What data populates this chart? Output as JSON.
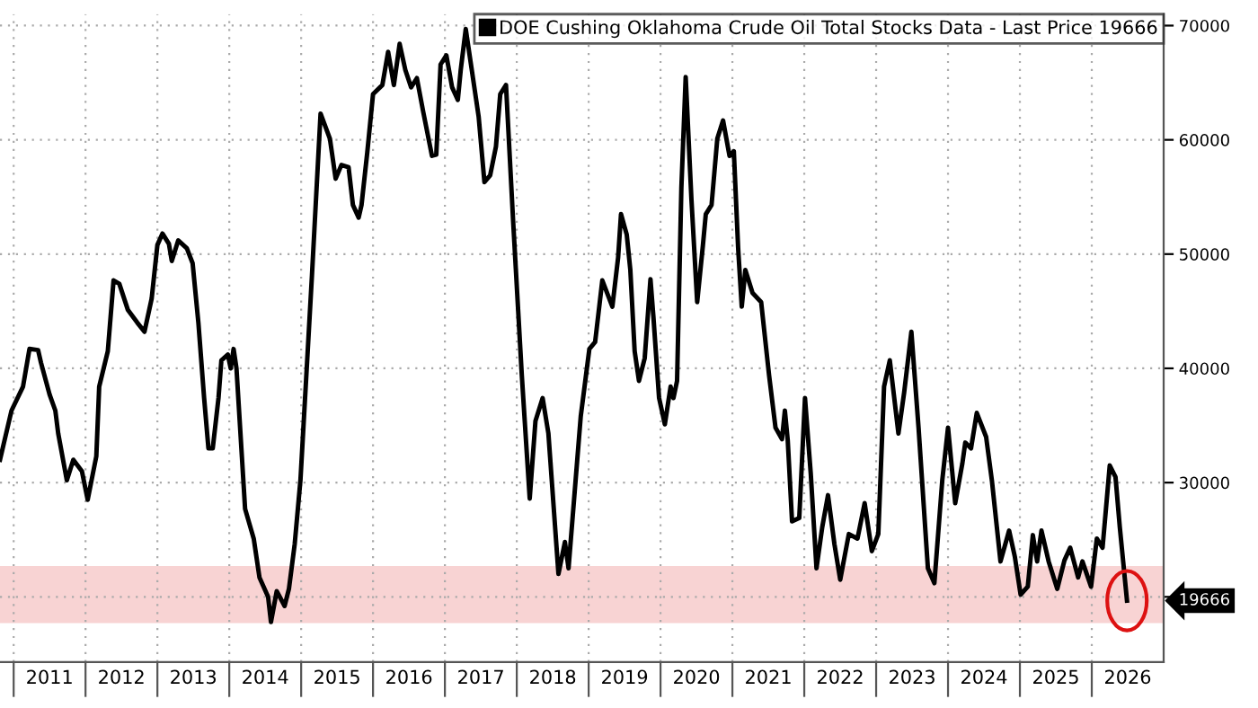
{
  "chart_data": {
    "type": "line",
    "legend": "top right",
    "grid": true,
    "marker": "none",
    "line_style": "solid",
    "xlim": [
      2010.81,
      2027.0
    ],
    "ylim": [
      14300,
      71000
    ],
    "xticks": [
      {
        "value": 2011,
        "label": null
      },
      {
        "value": 2011.5,
        "label": "2011"
      },
      {
        "value": 2012,
        "label": null
      },
      {
        "value": 2012.5,
        "label": "2012"
      },
      {
        "value": 2013,
        "label": null
      },
      {
        "value": 2013.5,
        "label": "2013"
      },
      {
        "value": 2014,
        "label": null
      },
      {
        "value": 2014.5,
        "label": "2014"
      },
      {
        "value": 2015,
        "label": null
      },
      {
        "value": 2015.5,
        "label": "2015"
      },
      {
        "value": 2016,
        "label": null
      },
      {
        "value": 2016.5,
        "label": "2016"
      },
      {
        "value": 2017,
        "label": null
      },
      {
        "value": 2017.5,
        "label": "2017"
      },
      {
        "value": 2018,
        "label": null
      },
      {
        "value": 2018.5,
        "label": "2018"
      },
      {
        "value": 2019,
        "label": null
      },
      {
        "value": 2019.5,
        "label": "2019"
      },
      {
        "value": 2020,
        "label": null
      },
      {
        "value": 2020.5,
        "label": "2020"
      },
      {
        "value": 2021,
        "label": null
      },
      {
        "value": 2021.5,
        "label": "2021"
      },
      {
        "value": 2022,
        "label": null
      },
      {
        "value": 2022.5,
        "label": "2022"
      },
      {
        "value": 2023,
        "label": null
      },
      {
        "value": 2023.5,
        "label": "2023"
      },
      {
        "value": 2024,
        "label": null
      },
      {
        "value": 2024.5,
        "label": "2024"
      },
      {
        "value": 2025,
        "label": null
      },
      {
        "value": 2025.5,
        "label": "2025"
      },
      {
        "value": 2026,
        "label": null
      },
      {
        "value": 2026.5,
        "label": "2026"
      }
    ],
    "yticks": [
      {
        "value": 20000,
        "label": null
      },
      30000,
      40000,
      50000,
      60000,
      70000
    ],
    "bands": [
      {
        "axis": "y",
        "from": 17700,
        "to": 22700,
        "color": "#f8d3d3"
      }
    ],
    "annotations": [
      {
        "text": "19666",
        "x": 2027.0,
        "y": 19666
      }
    ],
    "series": [
      {
        "name": "DOE Cushing Oklahoma Crude Oil Total Stocks Data - Last Price 19666",
        "color": "#000000",
        "x": [
          2010.81,
          2010.97,
          2011.13,
          2011.22,
          2011.34,
          2011.38,
          2011.5,
          2011.58,
          2011.62,
          2011.74,
          2011.83,
          2011.95,
          2012.03,
          2012.15,
          2012.19,
          2012.31,
          2012.39,
          2012.47,
          2012.59,
          2012.72,
          2012.82,
          2012.92,
          2013.0,
          2013.07,
          2013.16,
          2013.2,
          2013.29,
          2013.41,
          2013.49,
          2013.57,
          2013.65,
          2013.71,
          2013.77,
          2013.85,
          2013.89,
          2013.98,
          2014.02,
          2014.06,
          2014.1,
          2014.22,
          2014.34,
          2014.42,
          2014.54,
          2014.58,
          2014.66,
          2014.77,
          2014.83,
          2014.91,
          2014.99,
          2015.15,
          2015.27,
          2015.4,
          2015.48,
          2015.56,
          2015.66,
          2015.72,
          2015.8,
          2015.84,
          2015.92,
          2016.0,
          2016.13,
          2016.21,
          2016.29,
          2016.37,
          2016.45,
          2016.53,
          2016.61,
          2016.7,
          2016.82,
          2016.88,
          2016.94,
          2017.02,
          2017.1,
          2017.18,
          2017.22,
          2017.29,
          2017.37,
          2017.47,
          2017.55,
          2017.63,
          2017.71,
          2017.77,
          2017.85,
          2017.95,
          2018.07,
          2018.18,
          2018.26,
          2018.36,
          2018.44,
          2018.58,
          2018.67,
          2018.72,
          2018.89,
          2019.01,
          2019.09,
          2019.19,
          2019.33,
          2019.41,
          2019.45,
          2019.53,
          2019.58,
          2019.64,
          2019.7,
          2019.78,
          2019.86,
          2019.9,
          2019.98,
          2020.06,
          2020.14,
          2020.18,
          2020.23,
          2020.29,
          2020.35,
          2020.43,
          2020.51,
          2020.59,
          2020.63,
          2020.71,
          2020.79,
          2020.87,
          2020.96,
          2021.02,
          2021.08,
          2021.13,
          2021.18,
          2021.28,
          2021.4,
          2021.51,
          2021.6,
          2021.69,
          2021.73,
          2021.77,
          2021.83,
          2021.93,
          2022.01,
          2022.09,
          2022.17,
          2022.25,
          2022.33,
          2022.42,
          2022.5,
          2022.62,
          2022.74,
          2022.84,
          2022.94,
          2023.03,
          2023.11,
          2023.19,
          2023.31,
          2023.39,
          2023.49,
          2023.59,
          2023.72,
          2023.81,
          2023.92,
          2024.0,
          2024.1,
          2024.2,
          2024.24,
          2024.32,
          2024.4,
          2024.53,
          2024.61,
          2024.73,
          2024.85,
          2024.93,
          2025.01,
          2025.11,
          2025.18,
          2025.24,
          2025.3,
          2025.4,
          2025.52,
          2025.62,
          2025.7,
          2025.81,
          2025.87,
          2025.99,
          2026.07,
          2026.15,
          2026.25,
          2026.33,
          2026.39,
          2026.49
        ],
        "values": [
          32000,
          36300,
          38400,
          41700,
          41600,
          40500,
          37700,
          36300,
          34300,
          30200,
          32000,
          31000,
          28500,
          32300,
          38400,
          41500,
          47700,
          47400,
          45100,
          44000,
          43200,
          46100,
          50800,
          51800,
          50900,
          49400,
          51200,
          50500,
          49200,
          44000,
          37400,
          33000,
          33000,
          37400,
          40700,
          41200,
          40000,
          41700,
          40000,
          27700,
          25100,
          21700,
          20000,
          17800,
          20500,
          19200,
          20700,
          24600,
          30200,
          48100,
          62300,
          60100,
          56600,
          57800,
          57600,
          54300,
          53200,
          54300,
          58900,
          64000,
          64800,
          67700,
          64800,
          68400,
          66100,
          64600,
          65400,
          62400,
          58600,
          58700,
          66600,
          67400,
          64600,
          63500,
          66100,
          69700,
          66300,
          62000,
          56300,
          56900,
          59400,
          64000,
          64800,
          52800,
          39400,
          28600,
          35400,
          37400,
          34300,
          22000,
          24800,
          22500,
          35800,
          41700,
          42300,
          47700,
          45400,
          49700,
          53500,
          51700,
          48600,
          41500,
          38900,
          40900,
          47800,
          44600,
          37400,
          35100,
          38400,
          37400,
          38900,
          55800,
          65500,
          54800,
          45800,
          50800,
          53500,
          54300,
          60100,
          61700,
          58600,
          59000,
          50500,
          45400,
          48600,
          46600,
          45800,
          39400,
          34800,
          33800,
          36300,
          33700,
          26600,
          26900,
          37400,
          30800,
          22500,
          26100,
          28900,
          24600,
          21500,
          25500,
          25100,
          28200,
          24000,
          25500,
          38400,
          40700,
          34300,
          37900,
          43200,
          34800,
          22500,
          21200,
          30200,
          34800,
          28200,
          31700,
          33500,
          33000,
          36100,
          34000,
          30200,
          23100,
          25800,
          23500,
          20200,
          20900,
          25400,
          23100,
          25800,
          23100,
          20700,
          23200,
          24300,
          21700,
          23100,
          20900,
          25100,
          24300,
          31500,
          30500,
          26100,
          19666
        ]
      }
    ]
  }
}
